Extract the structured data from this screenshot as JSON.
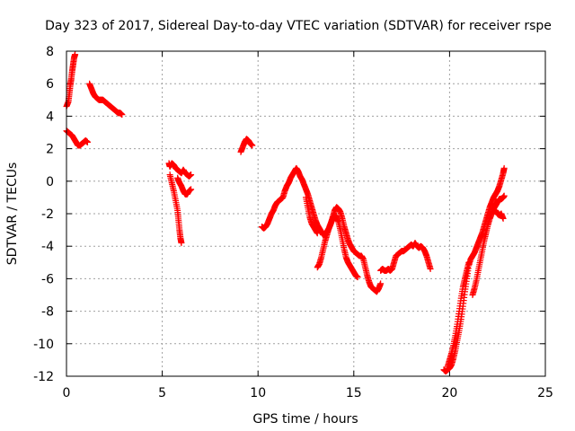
{
  "chart_data": {
    "type": "scatter",
    "title": "Day 323 of 2017, Sidereal Day-to-day VTEC variation (SDTVAR) for receiver rspe",
    "xlabel": "GPS time / hours",
    "ylabel": "SDTVAR / TECUs",
    "xlim": [
      0,
      25
    ],
    "ylim": [
      -12,
      8
    ],
    "xticks": [
      0,
      5,
      10,
      15,
      20,
      25
    ],
    "yticks": [
      -12,
      -10,
      -8,
      -6,
      -4,
      -2,
      0,
      2,
      4,
      6,
      8
    ],
    "grid": true,
    "marker": "plus",
    "color": "#ff0000",
    "segments": [
      [
        [
          0.0,
          4.6
        ],
        [
          0.1,
          4.9
        ],
        [
          0.15,
          5.4
        ],
        [
          0.2,
          5.9
        ],
        [
          0.25,
          6.3
        ],
        [
          0.3,
          6.8
        ],
        [
          0.35,
          7.2
        ],
        [
          0.4,
          7.6
        ],
        [
          0.45,
          7.8
        ]
      ],
      [
        [
          0.0,
          3.1
        ],
        [
          0.1,
          3.0
        ],
        [
          0.2,
          2.9
        ],
        [
          0.3,
          2.8
        ],
        [
          0.4,
          2.6
        ],
        [
          0.5,
          2.4
        ],
        [
          0.6,
          2.2
        ],
        [
          0.7,
          2.2
        ],
        [
          0.8,
          2.3
        ],
        [
          0.9,
          2.4
        ],
        [
          1.0,
          2.5
        ],
        [
          1.1,
          2.4
        ]
      ],
      [
        [
          1.2,
          6.0
        ],
        [
          1.3,
          5.7
        ],
        [
          1.4,
          5.4
        ],
        [
          1.5,
          5.2
        ],
        [
          1.6,
          5.1
        ],
        [
          1.7,
          5.0
        ],
        [
          1.8,
          5.0
        ],
        [
          1.9,
          5.0
        ],
        [
          2.0,
          4.9
        ],
        [
          2.1,
          4.8
        ],
        [
          2.2,
          4.7
        ],
        [
          2.3,
          4.6
        ],
        [
          2.4,
          4.5
        ],
        [
          2.5,
          4.4
        ],
        [
          2.6,
          4.3
        ],
        [
          2.7,
          4.2
        ],
        [
          2.8,
          4.2
        ],
        [
          2.9,
          4.1
        ]
      ],
      [
        [
          5.35,
          1.1
        ],
        [
          5.4,
          0.9
        ],
        [
          5.5,
          1.1
        ],
        [
          5.6,
          1.0
        ],
        [
          5.7,
          0.8
        ],
        [
          5.8,
          0.7
        ],
        [
          5.9,
          0.6
        ],
        [
          6.0,
          0.5
        ],
        [
          6.1,
          0.7
        ],
        [
          6.2,
          0.5
        ],
        [
          6.3,
          0.4
        ],
        [
          6.4,
          0.3
        ],
        [
          6.5,
          0.4
        ]
      ],
      [
        [
          5.4,
          0.4
        ],
        [
          5.5,
          -0.1
        ],
        [
          5.6,
          -0.6
        ],
        [
          5.7,
          -1.2
        ],
        [
          5.8,
          -1.8
        ],
        [
          5.85,
          -2.4
        ],
        [
          5.9,
          -3.0
        ],
        [
          5.95,
          -3.5
        ],
        [
          6.0,
          -3.8
        ]
      ],
      [
        [
          5.8,
          0.2
        ],
        [
          5.9,
          -0.1
        ],
        [
          6.0,
          -0.3
        ],
        [
          6.1,
          -0.6
        ],
        [
          6.2,
          -0.8
        ],
        [
          6.3,
          -0.8
        ],
        [
          6.4,
          -0.6
        ],
        [
          6.5,
          -0.5
        ]
      ],
      [
        [
          9.1,
          1.8
        ],
        [
          9.2,
          2.1
        ],
        [
          9.3,
          2.4
        ],
        [
          9.4,
          2.6
        ],
        [
          9.5,
          2.5
        ],
        [
          9.6,
          2.3
        ],
        [
          9.7,
          2.2
        ]
      ],
      [
        [
          10.2,
          -2.8
        ],
        [
          10.3,
          -2.9
        ],
        [
          10.4,
          -2.8
        ],
        [
          10.5,
          -2.6
        ],
        [
          10.6,
          -2.3
        ],
        [
          10.7,
          -2.0
        ],
        [
          10.8,
          -1.8
        ],
        [
          10.9,
          -1.5
        ],
        [
          11.0,
          -1.3
        ],
        [
          11.1,
          -1.2
        ],
        [
          11.2,
          -1.1
        ],
        [
          11.3,
          -1.0
        ],
        [
          11.4,
          -0.6
        ],
        [
          11.5,
          -0.3
        ],
        [
          11.6,
          -0.1
        ],
        [
          11.7,
          0.2
        ],
        [
          11.8,
          0.4
        ],
        [
          11.9,
          0.6
        ],
        [
          12.0,
          0.8
        ],
        [
          12.1,
          0.6
        ],
        [
          12.2,
          0.3
        ],
        [
          12.3,
          0.1
        ],
        [
          12.4,
          -0.2
        ],
        [
          12.5,
          -0.5
        ],
        [
          12.6,
          -0.8
        ],
        [
          12.7,
          -1.2
        ],
        [
          12.8,
          -1.6
        ],
        [
          12.9,
          -2.0
        ],
        [
          13.0,
          -2.4
        ],
        [
          13.1,
          -2.7
        ],
        [
          13.2,
          -2.9
        ],
        [
          13.3,
          -3.1
        ],
        [
          13.4,
          -3.3
        ],
        [
          13.5,
          -3.3
        ],
        [
          13.6,
          -3.1
        ],
        [
          13.7,
          -2.9
        ],
        [
          13.8,
          -2.6
        ],
        [
          13.9,
          -2.2
        ],
        [
          14.0,
          -1.8
        ],
        [
          14.1,
          -1.6
        ],
        [
          14.2,
          -1.7
        ],
        [
          14.3,
          -1.9
        ],
        [
          14.4,
          -2.3
        ],
        [
          14.5,
          -2.8
        ],
        [
          14.6,
          -3.2
        ],
        [
          14.7,
          -3.6
        ],
        [
          14.8,
          -3.9
        ],
        [
          14.9,
          -4.1
        ],
        [
          15.0,
          -4.3
        ],
        [
          15.1,
          -4.4
        ],
        [
          15.2,
          -4.5
        ],
        [
          15.3,
          -4.6
        ],
        [
          15.4,
          -4.6
        ],
        [
          15.5,
          -4.8
        ],
        [
          15.6,
          -5.3
        ],
        [
          15.7,
          -5.8
        ],
        [
          15.8,
          -6.2
        ],
        [
          15.9,
          -6.5
        ],
        [
          16.0,
          -6.6
        ],
        [
          16.1,
          -6.7
        ],
        [
          16.2,
          -6.8
        ],
        [
          16.3,
          -6.6
        ],
        [
          16.4,
          -6.3
        ]
      ],
      [
        [
          12.5,
          -1.0
        ],
        [
          12.6,
          -1.6
        ],
        [
          12.7,
          -2.2
        ],
        [
          12.8,
          -2.6
        ],
        [
          12.9,
          -2.8
        ],
        [
          13.0,
          -3.0
        ],
        [
          13.1,
          -3.2
        ]
      ],
      [
        [
          13.1,
          -5.3
        ],
        [
          13.2,
          -5.1
        ],
        [
          13.3,
          -4.7
        ],
        [
          13.4,
          -4.2
        ],
        [
          13.5,
          -3.7
        ],
        [
          13.6,
          -3.3
        ],
        [
          13.7,
          -2.9
        ],
        [
          13.8,
          -2.6
        ],
        [
          13.9,
          -2.3
        ],
        [
          14.0,
          -2.1
        ],
        [
          14.1,
          -2.2
        ],
        [
          14.2,
          -2.5
        ],
        [
          14.3,
          -3.0
        ],
        [
          14.4,
          -3.6
        ],
        [
          14.5,
          -4.2
        ],
        [
          14.6,
          -4.7
        ],
        [
          14.7,
          -5.0
        ],
        [
          14.8,
          -5.2
        ],
        [
          14.9,
          -5.4
        ],
        [
          15.0,
          -5.6
        ],
        [
          15.1,
          -5.8
        ],
        [
          15.2,
          -5.9
        ]
      ],
      [
        [
          16.4,
          -5.5
        ],
        [
          16.5,
          -5.4
        ],
        [
          16.6,
          -5.5
        ],
        [
          16.7,
          -5.5
        ],
        [
          16.8,
          -5.4
        ],
        [
          16.9,
          -5.5
        ],
        [
          17.0,
          -5.4
        ],
        [
          17.1,
          -5.0
        ],
        [
          17.2,
          -4.6
        ],
        [
          17.3,
          -4.5
        ],
        [
          17.4,
          -4.4
        ],
        [
          17.5,
          -4.3
        ],
        [
          17.6,
          -4.3
        ],
        [
          17.7,
          -4.2
        ],
        [
          17.8,
          -4.1
        ],
        [
          17.9,
          -4.0
        ],
        [
          18.0,
          -3.9
        ],
        [
          18.1,
          -4.0
        ],
        [
          18.2,
          -3.8
        ],
        [
          18.3,
          -4.0
        ],
        [
          18.4,
          -4.1
        ],
        [
          18.5,
          -4.0
        ],
        [
          18.6,
          -4.1
        ],
        [
          18.7,
          -4.3
        ],
        [
          18.8,
          -4.6
        ],
        [
          18.9,
          -5.0
        ],
        [
          19.0,
          -5.4
        ]
      ],
      [
        [
          19.7,
          -11.6
        ],
        [
          19.8,
          -11.7
        ],
        [
          19.9,
          -11.6
        ],
        [
          20.0,
          -11.5
        ],
        [
          20.1,
          -11.3
        ],
        [
          20.2,
          -10.9
        ],
        [
          20.3,
          -10.4
        ],
        [
          20.4,
          -9.8
        ],
        [
          20.5,
          -9.2
        ],
        [
          20.6,
          -8.5
        ],
        [
          20.7,
          -7.7
        ],
        [
          20.8,
          -6.8
        ],
        [
          20.9,
          -6.0
        ],
        [
          21.0,
          -5.2
        ],
        [
          21.1,
          -4.8
        ],
        [
          21.2,
          -4.6
        ],
        [
          21.3,
          -4.4
        ],
        [
          21.4,
          -4.1
        ],
        [
          21.5,
          -3.8
        ],
        [
          21.6,
          -3.5
        ],
        [
          21.7,
          -3.2
        ],
        [
          21.8,
          -2.8
        ],
        [
          21.9,
          -2.4
        ],
        [
          22.0,
          -2.0
        ],
        [
          22.1,
          -1.6
        ],
        [
          22.2,
          -1.3
        ],
        [
          22.3,
          -1.0
        ],
        [
          22.4,
          -0.8
        ],
        [
          22.5,
          -0.6
        ],
        [
          22.6,
          -0.3
        ],
        [
          22.7,
          0.1
        ],
        [
          22.8,
          0.5
        ],
        [
          22.85,
          0.8
        ]
      ],
      [
        [
          19.9,
          -11.4
        ],
        [
          20.0,
          -11.0
        ],
        [
          20.1,
          -10.6
        ],
        [
          20.2,
          -10.1
        ],
        [
          20.3,
          -9.5
        ],
        [
          20.4,
          -8.8
        ],
        [
          20.5,
          -8.0
        ],
        [
          20.6,
          -7.2
        ],
        [
          20.7,
          -6.5
        ],
        [
          20.8,
          -6.0
        ],
        [
          20.9,
          -5.5
        ],
        [
          21.0,
          -5.0
        ]
      ],
      [
        [
          21.2,
          -7.0
        ],
        [
          21.3,
          -6.6
        ],
        [
          21.4,
          -6.1
        ],
        [
          21.5,
          -5.5
        ],
        [
          21.6,
          -4.9
        ],
        [
          21.7,
          -4.3
        ],
        [
          21.8,
          -3.7
        ],
        [
          21.9,
          -3.2
        ],
        [
          22.0,
          -2.7
        ],
        [
          22.1,
          -2.3
        ],
        [
          22.2,
          -2.0
        ],
        [
          22.3,
          -1.7
        ],
        [
          22.4,
          -1.5
        ],
        [
          22.5,
          -1.3
        ],
        [
          22.6,
          -1.1
        ],
        [
          22.7,
          -1.1
        ],
        [
          22.8,
          -1.0
        ],
        [
          22.85,
          -0.9
        ]
      ],
      [
        [
          22.4,
          -1.8
        ],
        [
          22.5,
          -2.0
        ],
        [
          22.6,
          -2.1
        ],
        [
          22.7,
          -2.0
        ],
        [
          22.8,
          -2.3
        ]
      ]
    ]
  }
}
